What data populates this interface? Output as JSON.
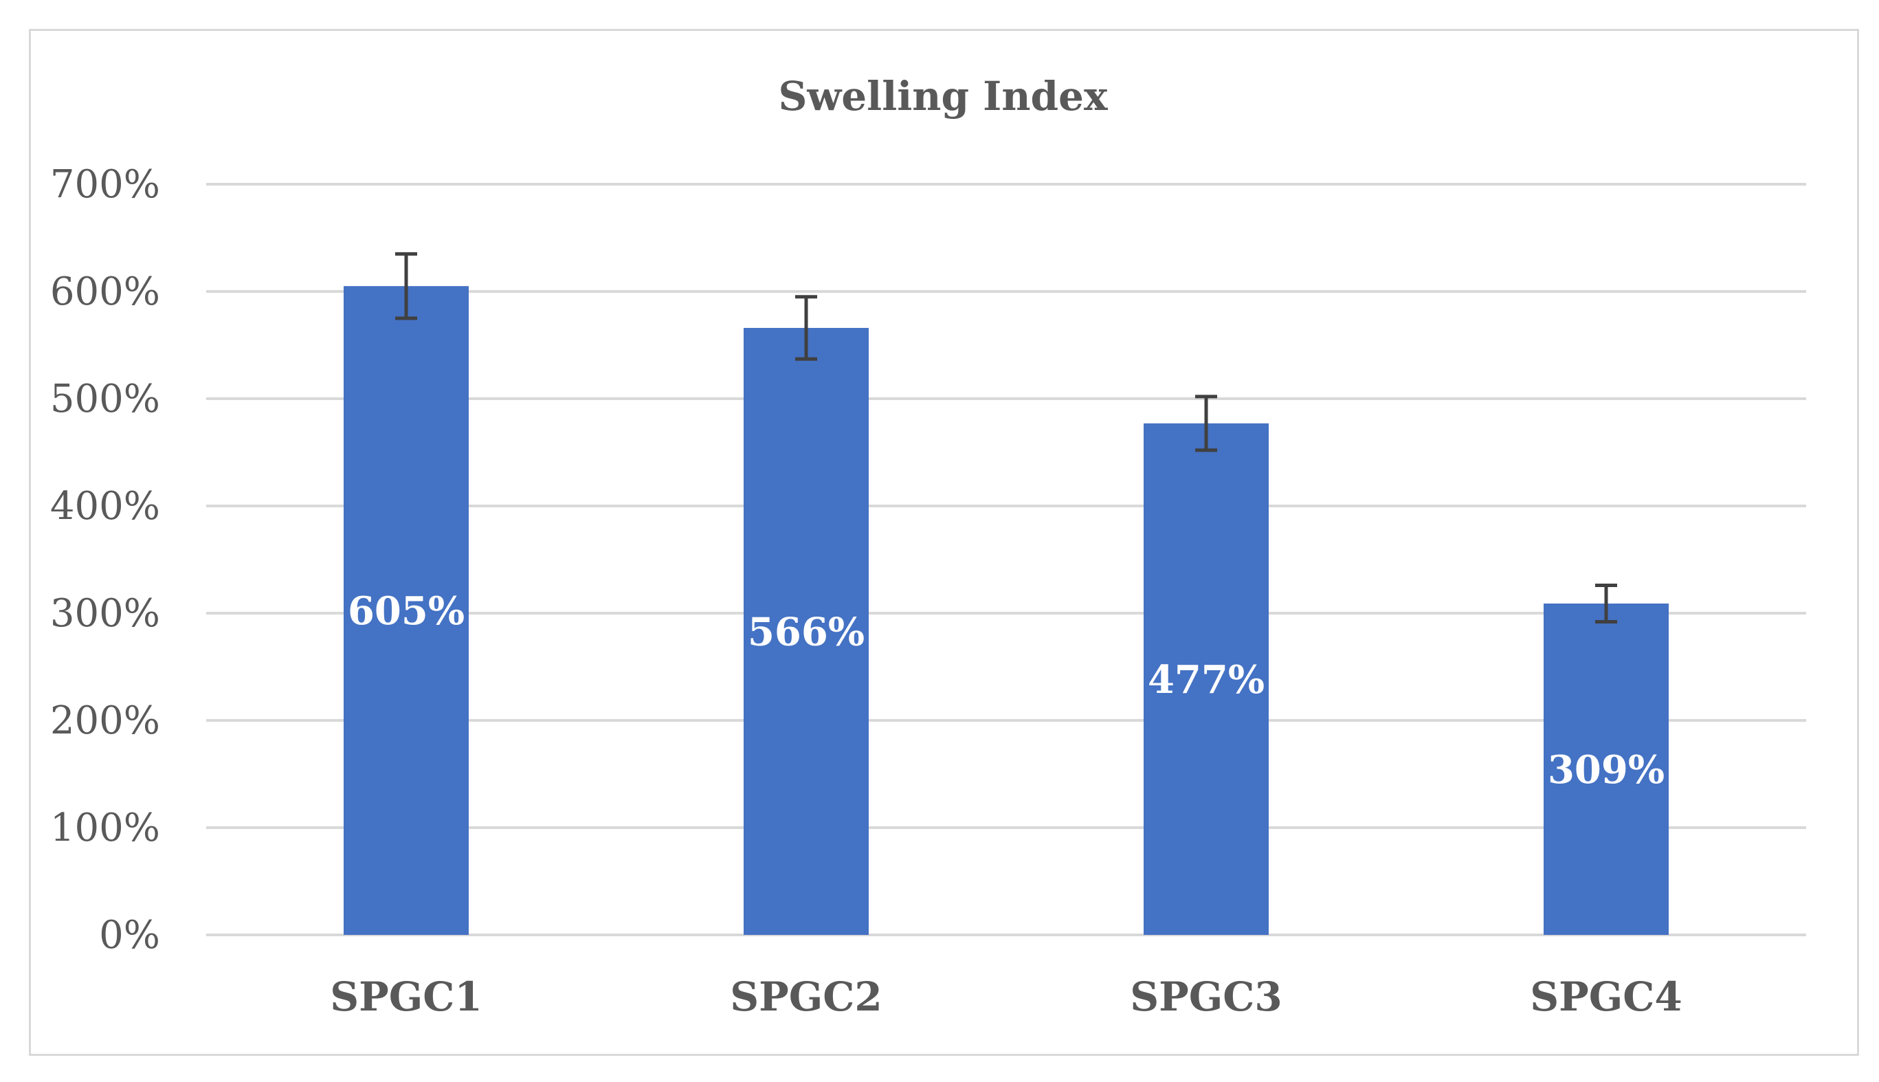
{
  "chart_data": {
    "type": "bar",
    "title": "Swelling Index",
    "xlabel": "",
    "ylabel": "",
    "categories": [
      "SPGC1",
      "SPGC2",
      "SPGC3",
      "SPGC4"
    ],
    "values": [
      605,
      566,
      477,
      309
    ],
    "value_labels": [
      "605%",
      "566%",
      "477%",
      "309%"
    ],
    "error": [
      30,
      29,
      25,
      17
    ],
    "ylim": [
      0,
      700
    ],
    "yticks": [
      0,
      100,
      200,
      300,
      400,
      500,
      600,
      700
    ],
    "ytick_labels": [
      "0%",
      "100%",
      "200%",
      "300%",
      "400%",
      "500%",
      "600%",
      "700%"
    ],
    "grid": true,
    "legend": "none",
    "bar_color": "#4472c4",
    "error_bar_color": "#404040",
    "gridline_color": "#d9d9d9"
  }
}
